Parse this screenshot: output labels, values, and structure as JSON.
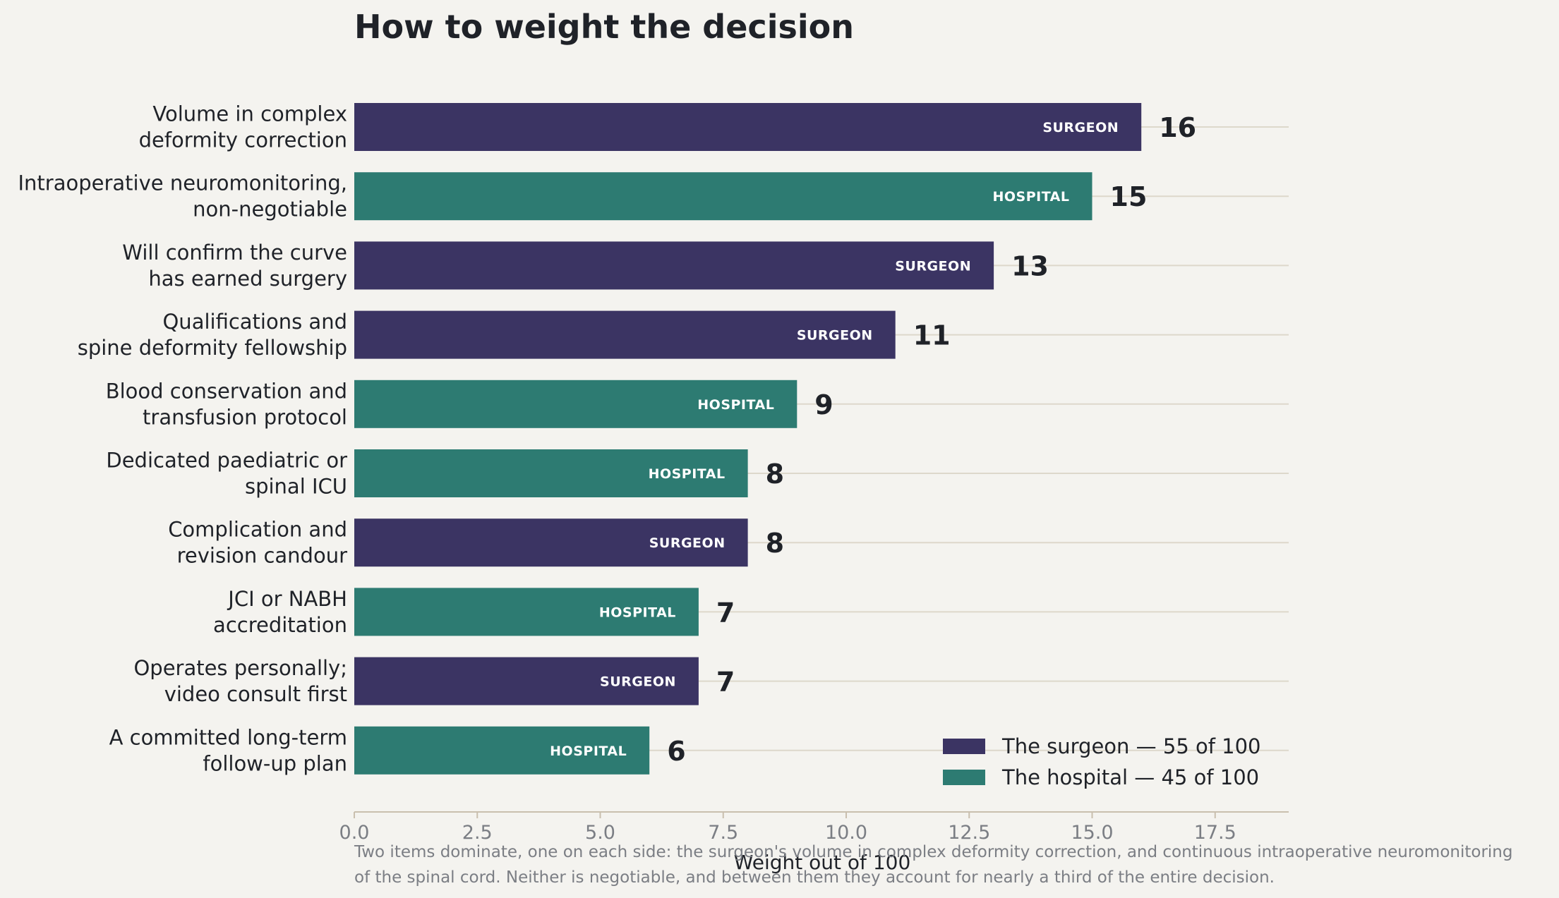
{
  "colors": {
    "background": "#f4f3ef",
    "surgeon": "#3b3463",
    "hospital": "#2d7b72",
    "text": "#1f2228",
    "muted": "#7b7e84",
    "gridline": "#ddd8cb",
    "axis": "#c9bfae"
  },
  "chart_data": {
    "type": "bar",
    "orientation": "horizontal",
    "title": "How to weight the decision",
    "xlabel": "Weight out of 100",
    "xlim": [
      0,
      19
    ],
    "xticks": [
      0.0,
      2.5,
      5.0,
      7.5,
      10.0,
      12.5,
      15.0,
      17.5
    ],
    "xtick_labels": [
      "0.0",
      "2.5",
      "5.0",
      "7.5",
      "10.0",
      "12.5",
      "15.0",
      "17.5"
    ],
    "grid": "horizontal lines at each bar",
    "legend_position": "bottom-right",
    "legend": [
      {
        "key": "surgeon",
        "label": "The surgeon — 55 of 100"
      },
      {
        "key": "hospital",
        "label": "The hospital — 45 of 100"
      }
    ],
    "bar_tags": {
      "surgeon": "SURGEON",
      "hospital": "HOSPITAL"
    },
    "bars": [
      {
        "label": [
          "Volume in complex",
          "deformity correction"
        ],
        "value": 16,
        "group": "surgeon"
      },
      {
        "label": [
          "Intraoperative neuromonitoring,",
          "non-negotiable"
        ],
        "value": 15,
        "group": "hospital"
      },
      {
        "label": [
          "Will confirm the curve",
          "has earned surgery"
        ],
        "value": 13,
        "group": "surgeon"
      },
      {
        "label": [
          "Qualifications and",
          "spine deformity fellowship"
        ],
        "value": 11,
        "group": "surgeon"
      },
      {
        "label": [
          "Blood conservation and",
          "transfusion protocol"
        ],
        "value": 9,
        "group": "hospital"
      },
      {
        "label": [
          "Dedicated paediatric or",
          "spinal ICU"
        ],
        "value": 8,
        "group": "hospital"
      },
      {
        "label": [
          "Complication and",
          "revision candour"
        ],
        "value": 8,
        "group": "surgeon"
      },
      {
        "label": [
          "JCI or NABH",
          "accreditation"
        ],
        "value": 7,
        "group": "hospital"
      },
      {
        "label": [
          "Operates personally;",
          "video consult first"
        ],
        "value": 7,
        "group": "surgeon"
      },
      {
        "label": [
          "A committed long-term",
          "follow-up plan"
        ],
        "value": 6,
        "group": "hospital"
      }
    ],
    "caption": [
      "Two items dominate, one on each side: the surgeon's volume in complex deformity correction, and continuous intraoperative neuromonitoring",
      "of the spinal cord. Neither is negotiable, and between them they account for nearly a third of the entire decision."
    ]
  }
}
